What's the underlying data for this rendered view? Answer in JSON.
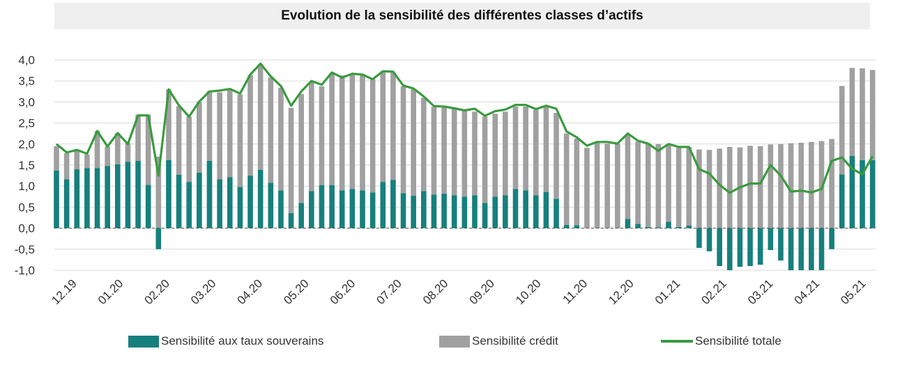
{
  "chart_data": {
    "type": "bar",
    "title": "Evolution de la sensibilité des différentes classes d’actifs",
    "xlabel": "",
    "ylabel": "",
    "ylim": [
      -1.0,
      4.0
    ],
    "y_ticks": [
      "4,0",
      "3,5",
      "3,0",
      "2,5",
      "2,0",
      "1,5",
      "1,0",
      "0,5",
      "0,0",
      "-0,5",
      "-1,0"
    ],
    "x_tick_labels": [
      "12.19",
      "01.20",
      "02.20",
      "03.20",
      "04.20",
      "05.20",
      "06.20",
      "07.20",
      "08.20",
      "09.20",
      "10.20",
      "11.20",
      "12.20",
      "01.21",
      "02.21",
      "03.21",
      "04.21",
      "05.21"
    ],
    "stacked": true,
    "grid": true,
    "legend_position": "bottom",
    "series": [
      {
        "name": "Sensibilité aux taux souverains",
        "type": "bar",
        "color": "#16807c",
        "values": [
          1.37,
          1.16,
          1.4,
          1.43,
          1.43,
          1.48,
          1.52,
          1.58,
          1.6,
          1.03,
          -0.5,
          1.62,
          1.27,
          1.1,
          1.32,
          1.6,
          1.16,
          1.21,
          0.98,
          1.25,
          1.39,
          1.08,
          0.9,
          0.36,
          0.6,
          0.88,
          1.02,
          1.02,
          0.9,
          0.93,
          0.9,
          0.85,
          1.1,
          1.15,
          0.83,
          0.77,
          0.88,
          0.8,
          0.82,
          0.78,
          0.75,
          0.78,
          0.6,
          0.75,
          0.78,
          0.93,
          0.9,
          0.78,
          0.86,
          0.7,
          0.08,
          0.07,
          0.0,
          0.0,
          0.0,
          0.0,
          0.22,
          0.1,
          0.03,
          0.02,
          0.15,
          0.03,
          0.06,
          -0.47,
          -0.55,
          -0.9,
          -1.0,
          -0.92,
          -0.9,
          -0.87,
          -0.52,
          -0.77,
          -1.0,
          -1.0,
          -1.0,
          -1.0,
          -0.5,
          1.28,
          1.72,
          1.62,
          1.62
        ]
      },
      {
        "name": "Sensibilité crédit",
        "type": "bar",
        "color": "#a0a0a0",
        "values": [
          0.58,
          0.62,
          0.47,
          0.32,
          0.88,
          0.46,
          0.74,
          0.44,
          1.1,
          1.67,
          1.7,
          1.68,
          1.63,
          1.55,
          1.68,
          1.66,
          2.07,
          2.08,
          2.2,
          2.39,
          2.51,
          2.5,
          2.44,
          2.5,
          2.59,
          2.6,
          2.35,
          2.66,
          2.73,
          2.72,
          2.74,
          2.69,
          2.63,
          2.55,
          2.54,
          2.53,
          2.22,
          2.08,
          2.05,
          2.06,
          2.05,
          1.99,
          2.05,
          1.97,
          1.99,
          1.96,
          1.99,
          2.03,
          2.02,
          2.04,
          2.17,
          2.06,
          1.91,
          2.05,
          2.01,
          2.0,
          1.99,
          1.96,
          1.98,
          1.98,
          1.82,
          1.88,
          1.87,
          1.87,
          1.86,
          1.89,
          1.93,
          1.92,
          1.96,
          1.95,
          1.99,
          2.0,
          2.02,
          2.03,
          2.05,
          2.07,
          2.12,
          2.1,
          2.09,
          2.18,
          2.14
        ]
      },
      {
        "name": "Sensibilité totale",
        "type": "line",
        "color": "#3a9a3f",
        "values": [
          2.0,
          1.8,
          1.86,
          1.77,
          2.31,
          1.94,
          2.26,
          2.0,
          2.68,
          2.68,
          1.25,
          3.3,
          2.92,
          2.65,
          3.01,
          3.25,
          3.27,
          3.31,
          3.2,
          3.65,
          3.91,
          3.61,
          3.38,
          2.91,
          3.25,
          3.5,
          3.41,
          3.7,
          3.58,
          3.67,
          3.65,
          3.54,
          3.73,
          3.72,
          3.39,
          3.32,
          3.13,
          2.9,
          2.89,
          2.85,
          2.8,
          2.84,
          2.67,
          2.78,
          2.82,
          2.93,
          2.93,
          2.83,
          2.91,
          2.84,
          2.3,
          2.16,
          1.96,
          2.05,
          2.05,
          2.01,
          2.25,
          2.08,
          2.01,
          1.84,
          2.0,
          1.93,
          1.93,
          1.4,
          1.3,
          1.03,
          0.84,
          0.97,
          1.06,
          1.06,
          1.5,
          1.25,
          0.87,
          0.89,
          0.85,
          0.93,
          1.6,
          1.68,
          1.41,
          1.28,
          1.71
        ]
      }
    ]
  }
}
